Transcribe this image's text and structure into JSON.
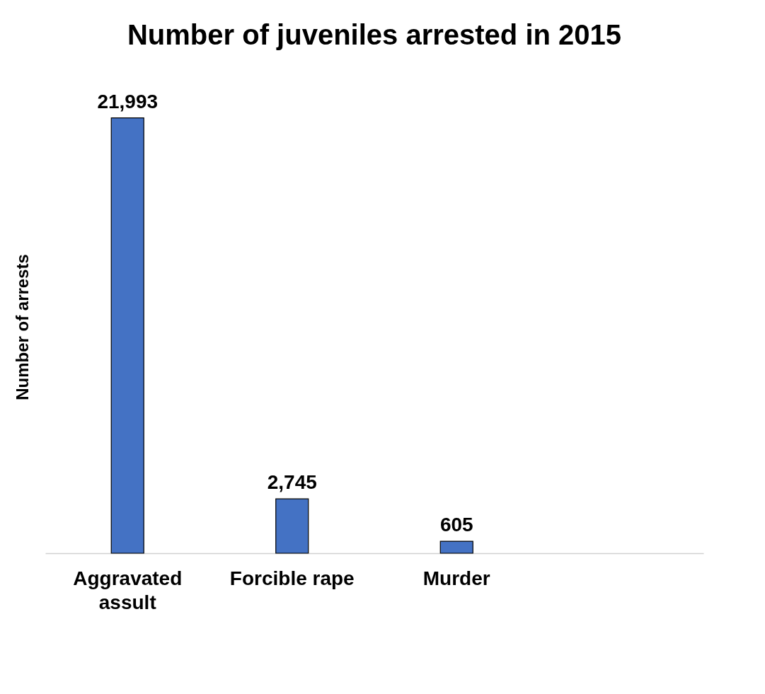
{
  "chart_data": {
    "type": "bar",
    "title": "Number of juveniles arrested in 2015",
    "ylabel": "Number of arrests",
    "categories": [
      "Aggravated assult",
      "Forcible rape",
      "Murder",
      null
    ],
    "values": [
      21993,
      2745,
      605,
      null
    ],
    "value_labels": [
      "21,993",
      "2,745",
      "605",
      null
    ],
    "color": "#4472c4",
    "grid": false,
    "tick_labels": "x"
  }
}
